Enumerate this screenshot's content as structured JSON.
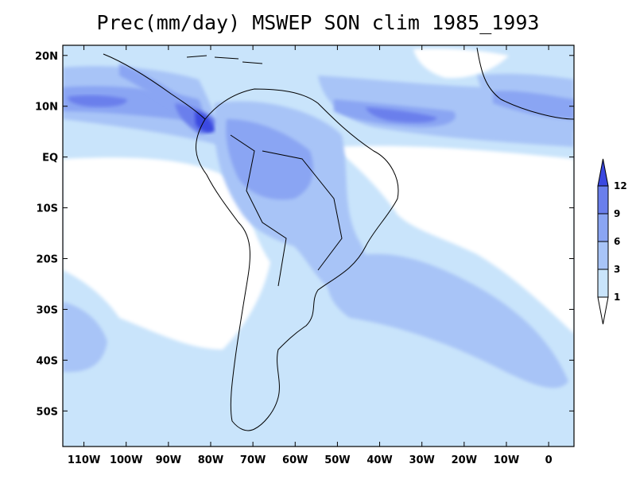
{
  "title": "Prec(mm/day) MSWEP SON clim 1985_1993",
  "map": {
    "lon_range": [
      -115,
      6
    ],
    "lat_range": [
      -57,
      22
    ],
    "lat_ticks": [
      {
        "value": 20,
        "label": "20N"
      },
      {
        "value": 10,
        "label": "10N"
      },
      {
        "value": 0,
        "label": "EQ"
      },
      {
        "value": -10,
        "label": "10S"
      },
      {
        "value": -20,
        "label": "20S"
      },
      {
        "value": -30,
        "label": "30S"
      },
      {
        "value": -40,
        "label": "40S"
      },
      {
        "value": -50,
        "label": "50S"
      }
    ],
    "lon_ticks": [
      {
        "value": -110,
        "label": "110W"
      },
      {
        "value": -100,
        "label": "100W"
      },
      {
        "value": -90,
        "label": "90W"
      },
      {
        "value": -80,
        "label": "80W"
      },
      {
        "value": -70,
        "label": "70W"
      },
      {
        "value": -60,
        "label": "60W"
      },
      {
        "value": -50,
        "label": "50W"
      },
      {
        "value": -40,
        "label": "40W"
      },
      {
        "value": -30,
        "label": "30W"
      },
      {
        "value": -20,
        "label": "20W"
      },
      {
        "value": -10,
        "label": "10W"
      },
      {
        "value": 0,
        "label": "0"
      }
    ]
  },
  "colorbar": {
    "levels": [
      "1",
      "3",
      "6",
      "9",
      "12"
    ],
    "colors": [
      "#ffffff",
      "#c9e4fb",
      "#a8c4f7",
      "#8aa5f3",
      "#6a7fec",
      "#3a48e0"
    ]
  },
  "colors": {
    "land_outline": "#000000",
    "frame": "#000000"
  }
}
